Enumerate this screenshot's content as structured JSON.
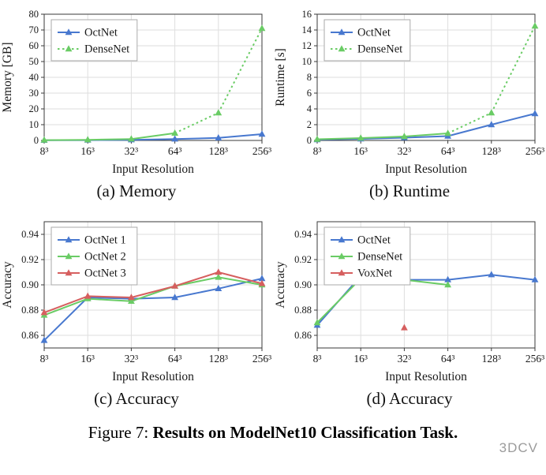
{
  "figure": {
    "caption_prefix": "Figure 7: ",
    "caption_bold": "Results on ModelNet10 Classification Task.",
    "watermark": "3DCV"
  },
  "colors": {
    "blue": "#4878cf",
    "green": "#6acc65",
    "red": "#d65f5f"
  },
  "chart_data": [
    {
      "id": "memory",
      "type": "line",
      "subcaption": "(a) Memory",
      "xlabel": "Input Resolution",
      "ylabel": "Memory [GB]",
      "categories": [
        "8³",
        "16³",
        "32³",
        "64³",
        "128³",
        "256³"
      ],
      "ylim": [
        0,
        80
      ],
      "yticks": {
        "values": [
          0,
          10,
          20,
          30,
          40,
          50,
          60,
          70,
          80
        ],
        "labels": [
          "0",
          "10",
          "20",
          "30",
          "40",
          "50",
          "60",
          "70",
          "80"
        ]
      },
      "grid": true,
      "legend_pos": "top-left",
      "series": [
        {
          "name": "OctNet",
          "color": "blue",
          "marker": "triangle",
          "dash_from": null,
          "values": [
            0.1,
            0.2,
            0.4,
            0.9,
            1.6,
            4.0
          ]
        },
        {
          "name": "DenseNet",
          "color": "green",
          "marker": "triangle",
          "dash_from": 3,
          "values": [
            0.2,
            0.4,
            0.9,
            4.6,
            17.5,
            71.0
          ]
        }
      ]
    },
    {
      "id": "runtime",
      "type": "line",
      "subcaption": "(b) Runtime",
      "xlabel": "Input Resolution",
      "ylabel": "Runtime [s]",
      "categories": [
        "8³",
        "16³",
        "32³",
        "64³",
        "128³",
        "256³"
      ],
      "ylim": [
        0,
        16
      ],
      "yticks": {
        "values": [
          0,
          2,
          4,
          6,
          8,
          10,
          12,
          14,
          16
        ],
        "labels": [
          "0",
          "2",
          "4",
          "6",
          "8",
          "10",
          "12",
          "14",
          "16"
        ]
      },
      "grid": true,
      "legend_pos": "top-left",
      "series": [
        {
          "name": "OctNet",
          "color": "blue",
          "marker": "triangle",
          "dash_from": null,
          "values": [
            0.1,
            0.2,
            0.35,
            0.55,
            2.0,
            3.4
          ]
        },
        {
          "name": "DenseNet",
          "color": "green",
          "marker": "triangle",
          "dash_from": 3,
          "values": [
            0.15,
            0.3,
            0.5,
            0.9,
            3.5,
            14.5
          ]
        }
      ]
    },
    {
      "id": "accuracy-c",
      "type": "line",
      "subcaption": "(c) Accuracy",
      "xlabel": "Input Resolution",
      "ylabel": "Accuracy",
      "categories": [
        "8³",
        "16³",
        "32³",
        "64³",
        "128³",
        "256³"
      ],
      "ylim": [
        0.85,
        0.95
      ],
      "yticks": {
        "values": [
          0.86,
          0.88,
          0.9,
          0.92,
          0.94
        ],
        "labels": [
          "0.86",
          "0.88",
          "0.90",
          "0.92",
          "0.94"
        ]
      },
      "grid": true,
      "legend_pos": "top-left",
      "series": [
        {
          "name": "OctNet 1",
          "color": "blue",
          "marker": "triangle",
          "dash_from": null,
          "values": [
            0.856,
            0.89,
            0.889,
            0.89,
            0.897,
            0.905
          ]
        },
        {
          "name": "OctNet 2",
          "color": "green",
          "marker": "triangle",
          "dash_from": null,
          "values": [
            0.876,
            0.889,
            0.887,
            0.899,
            0.906,
            0.9
          ]
        },
        {
          "name": "OctNet 3",
          "color": "red",
          "marker": "triangle",
          "dash_from": null,
          "values": [
            0.878,
            0.891,
            0.89,
            0.899,
            0.91,
            0.901
          ]
        }
      ]
    },
    {
      "id": "accuracy-d",
      "type": "line",
      "subcaption": "(d) Accuracy",
      "xlabel": "Input Resolution",
      "ylabel": "Accuracy",
      "categories": [
        "8³",
        "16³",
        "32³",
        "64³",
        "128³",
        "256³"
      ],
      "ylim": [
        0.85,
        0.95
      ],
      "yticks": {
        "values": [
          0.86,
          0.88,
          0.9,
          0.92,
          0.94
        ],
        "labels": [
          "0.86",
          "0.88",
          "0.90",
          "0.92",
          "0.94"
        ]
      },
      "grid": true,
      "legend_pos": "top-left",
      "series": [
        {
          "name": "OctNet",
          "color": "blue",
          "marker": "triangle",
          "dash_from": null,
          "values": [
            0.868,
            0.907,
            0.904,
            0.904,
            0.908,
            0.904
          ]
        },
        {
          "name": "DenseNet",
          "color": "green",
          "marker": "triangle",
          "dash_from": null,
          "values": [
            0.87,
            0.905,
            0.904,
            0.9,
            null,
            null
          ]
        },
        {
          "name": "VoxNet",
          "color": "red",
          "marker": "triangle",
          "dash_from": null,
          "values": [
            null,
            null,
            0.866,
            null,
            null,
            null
          ]
        }
      ]
    }
  ]
}
